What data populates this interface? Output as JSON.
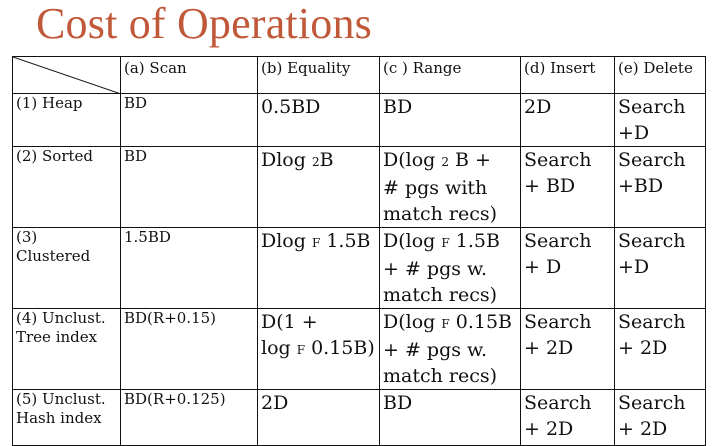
{
  "title": "Cost of Operations",
  "columns": [
    "(a) Scan",
    "(b) Equality",
    "(c ) Range",
    "(d) Insert",
    "(e) Delete"
  ],
  "rows": [
    {
      "label_lines": [
        "(1) Heap"
      ],
      "scan": "BD",
      "equality": "0.5BD",
      "range": "BD",
      "insert": "2D",
      "delete_lines": [
        "Search",
        "+D"
      ]
    },
    {
      "label_lines": [
        "(2) Sorted"
      ],
      "scan": "BD",
      "equality": {
        "pre": "Dlog ",
        "sub": "2",
        "post": "B"
      },
      "range_lines": [
        {
          "pre": "D(log ",
          "sub": "2",
          "post": " B +"
        },
        "# pgs with",
        "match recs)"
      ],
      "insert_lines": [
        "Search",
        "+ BD"
      ],
      "delete_lines": [
        "Search",
        "+BD"
      ]
    },
    {
      "label_lines": [
        "(3)",
        "Clustered"
      ],
      "scan": "1.5BD",
      "equality": {
        "pre": "Dlog ",
        "sub": "F",
        "post": " 1.5B"
      },
      "range_lines": [
        {
          "pre": "D(log ",
          "sub": "F",
          "post": " 1.5B"
        },
        "+ # pgs w.",
        "match recs)"
      ],
      "insert_lines": [
        "Search",
        "+ D"
      ],
      "delete_lines": [
        "Search",
        "+D"
      ]
    },
    {
      "label_lines": [
        "(4) Unclust.",
        "Tree index"
      ],
      "scan": "BD(R+0.15)",
      "equality_lines": [
        "D(1 +",
        {
          "pre": "log ",
          "sub": "F",
          "post": " 0.15B)"
        }
      ],
      "range_lines": [
        {
          "pre": "D(log ",
          "sub": "F",
          "post": " 0.15B"
        },
        "+ # pgs w.",
        "match recs)"
      ],
      "insert_lines": [
        "Search",
        "+ 2D"
      ],
      "delete_lines": [
        "Search",
        "+ 2D"
      ]
    },
    {
      "label_lines": [
        "(5) Unclust.",
        "Hash index"
      ],
      "scan": "BD(R+0.125)",
      "equality": "2D",
      "range": "BD",
      "insert_lines": [
        "Search",
        "+ 2D"
      ],
      "delete_lines": [
        "Search",
        "+ 2D"
      ]
    }
  ]
}
